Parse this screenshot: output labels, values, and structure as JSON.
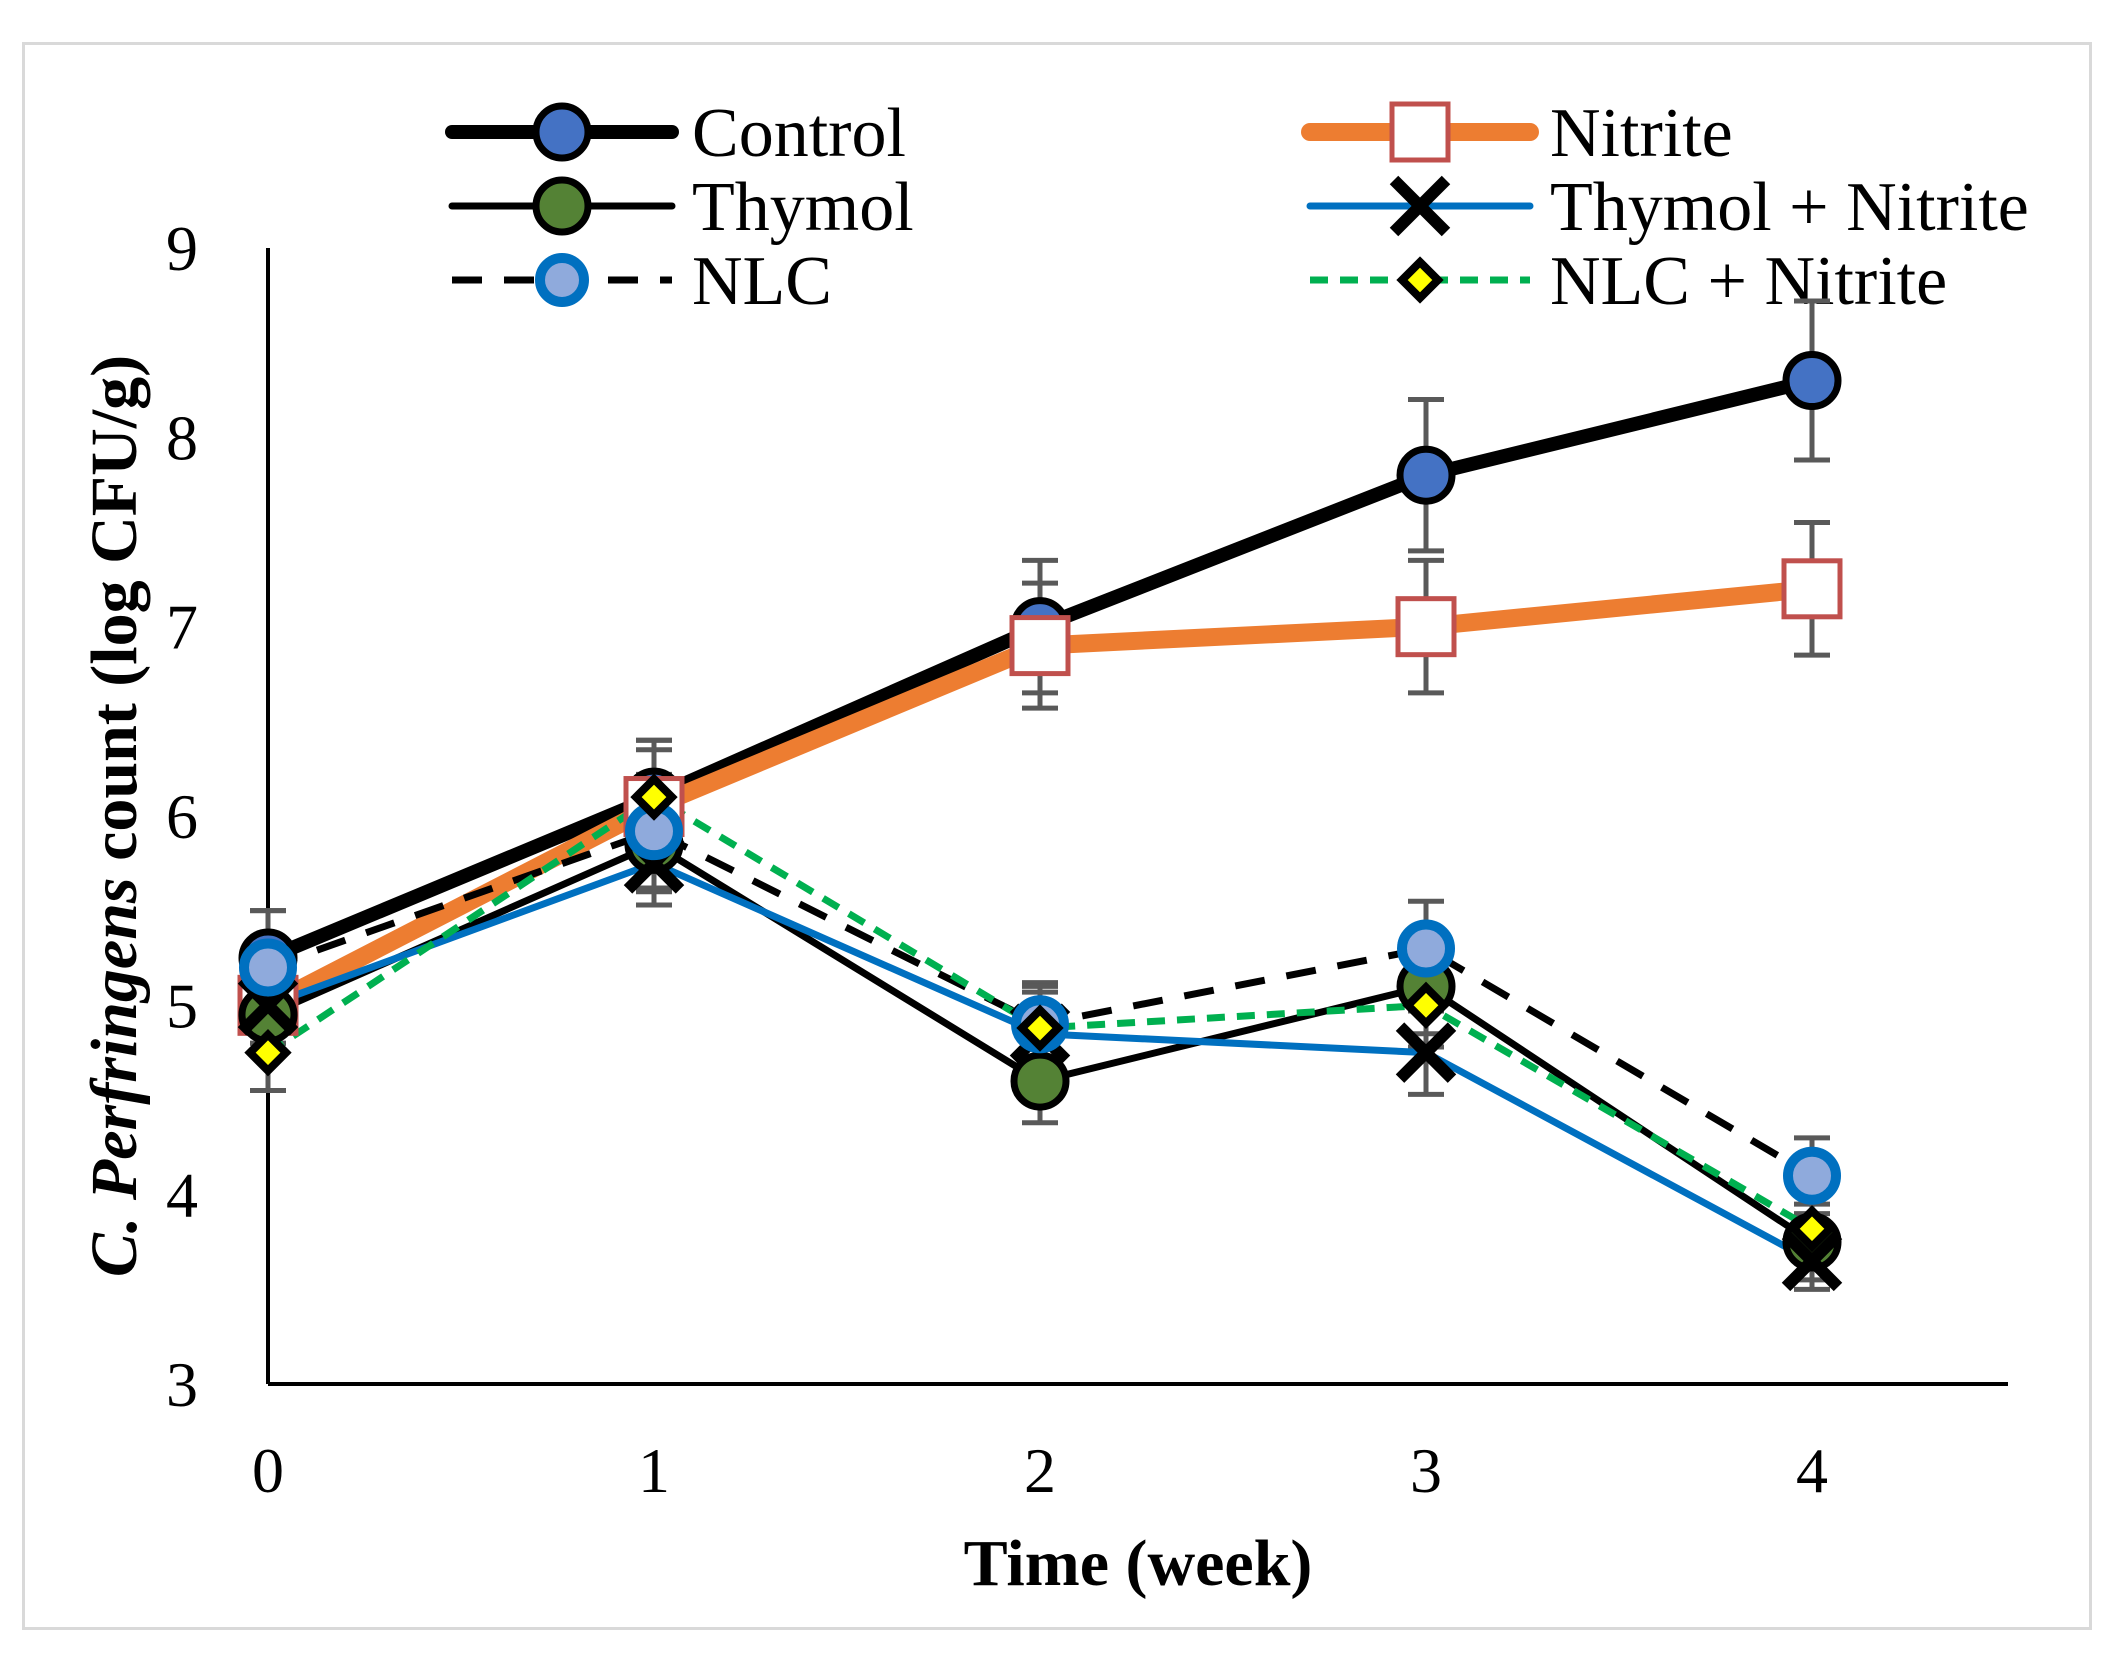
{
  "chart_data": {
    "type": "line",
    "x": [
      0,
      1,
      2,
      3,
      4
    ],
    "xlabel": "Time (week)",
    "ylabel_prefix": "C. ",
    "ylabel_italic": "Perfringens",
    "ylabel_suffix": " count (log CFU/g)",
    "ylim": [
      3,
      9
    ],
    "yticks": [
      3,
      4,
      5,
      6,
      7,
      8,
      9
    ],
    "xticks": [
      0,
      1,
      2,
      3,
      4
    ],
    "legend_position": "top",
    "series": [
      {
        "name": "Control",
        "values": [
          5.25,
          6.1,
          7.0,
          7.8,
          8.3
        ],
        "errors": [
          0.25,
          0.3,
          0.35,
          0.4,
          0.42
        ],
        "color": "#000000",
        "marker": "circle",
        "marker_fill": "#4472c4"
      },
      {
        "name": "Nitrite",
        "values": [
          5.0,
          6.05,
          6.9,
          7.0,
          7.2
        ],
        "errors": [
          0.2,
          0.3,
          0.33,
          0.35,
          0.35
        ],
        "color": "#ed7d31",
        "marker": "square",
        "marker_fill": "#ffffff"
      },
      {
        "name": "Thymol",
        "values": [
          4.95,
          5.85,
          4.6,
          5.1,
          3.75
        ],
        "errors": [
          0.2,
          0.25,
          0.22,
          0.25,
          0.2
        ],
        "color": "#000000",
        "marker": "circle",
        "marker_fill": "#548235"
      },
      {
        "name": "Thymol + Nitrite",
        "values": [
          5.0,
          5.75,
          4.85,
          4.75,
          3.65
        ],
        "errors": [
          0.2,
          0.22,
          0.22,
          0.22,
          0.15
        ],
        "color": "#0070c0",
        "marker": "x",
        "marker_fill": "#000000"
      },
      {
        "name": "NLC",
        "values": [
          5.2,
          5.92,
          4.9,
          5.3,
          4.1
        ],
        "errors": [
          0.3,
          0.3,
          0.22,
          0.25,
          0.2
        ],
        "color": "#000000",
        "marker": "circle",
        "marker_fill": "#8faadc"
      },
      {
        "name": "NLC + Nitrite",
        "values": [
          4.75,
          6.1,
          4.88,
          5.0,
          3.82
        ],
        "errors": [
          0.2,
          0.3,
          0.22,
          0.22,
          0.18
        ],
        "color": "#00b050",
        "marker": "diamond",
        "marker_fill": "#ffff00"
      }
    ]
  }
}
